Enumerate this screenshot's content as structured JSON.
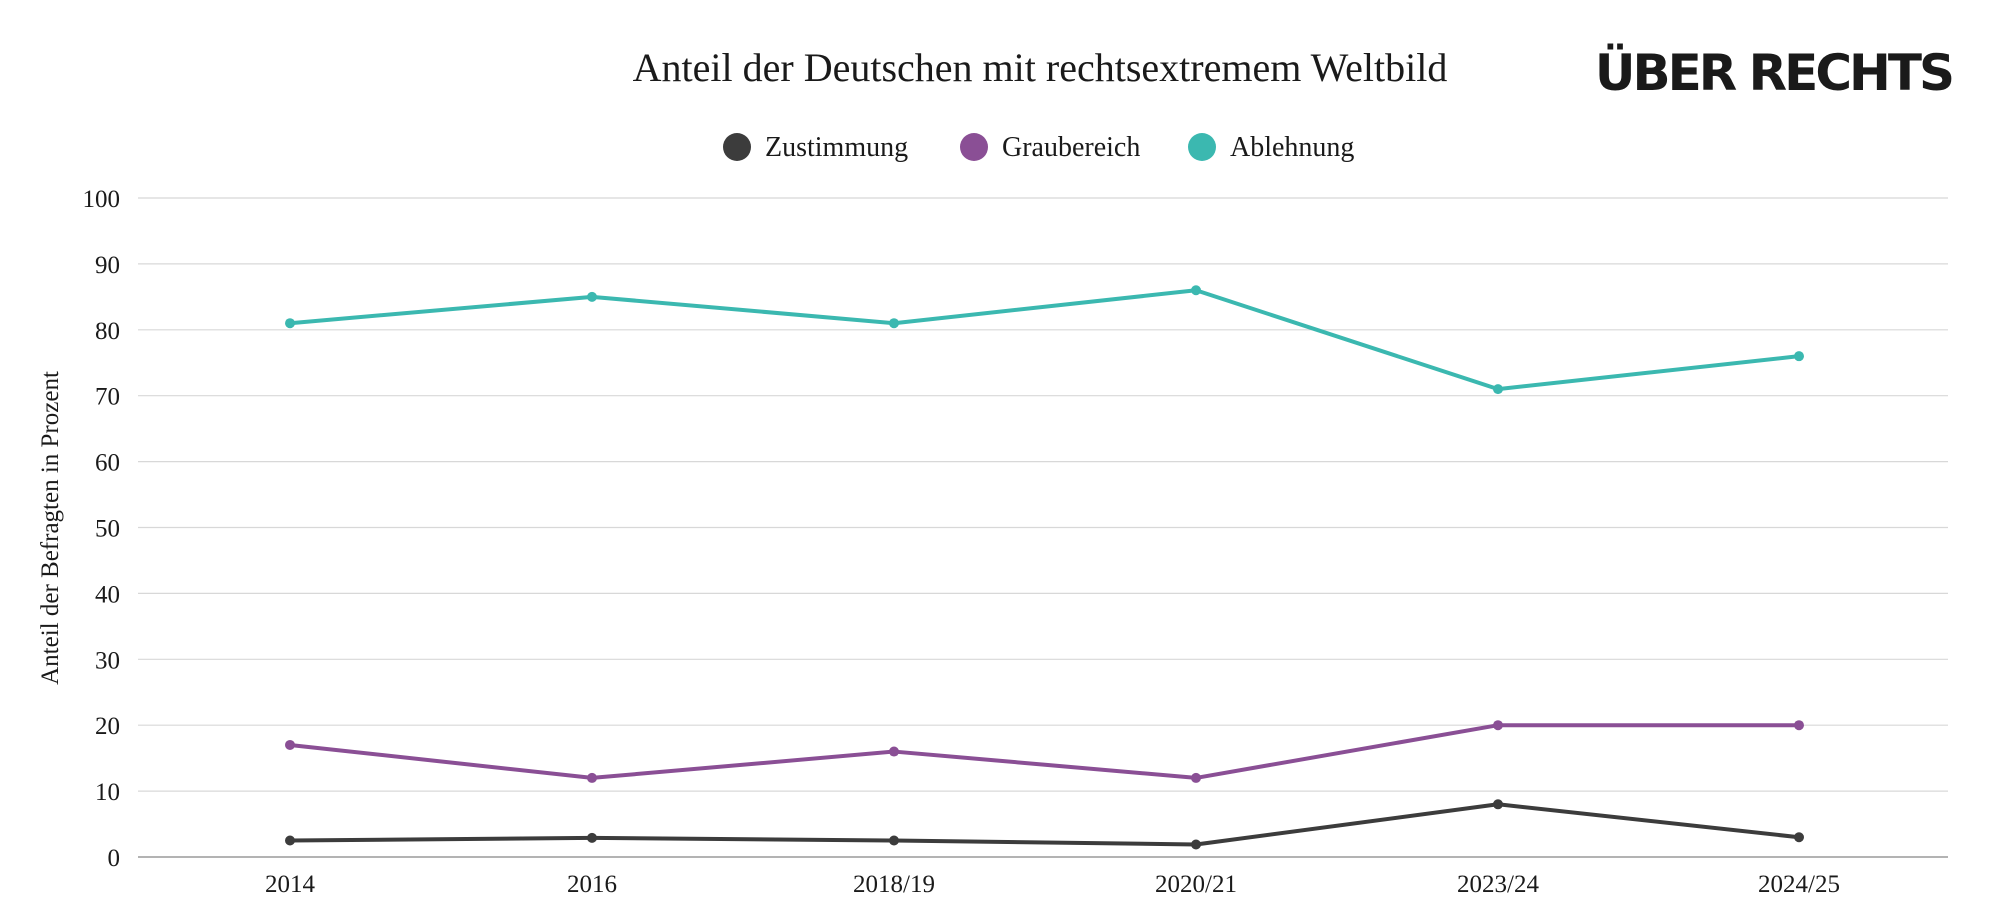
{
  "logo": {
    "text": "ÜBER RECHTS"
  },
  "chart_data": {
    "type": "line",
    "title": "Anteil der Deutschen mit rechtsextremem Weltbild",
    "xlabel": "",
    "ylabel": "Anteil der Befragten in Prozent",
    "categories": [
      "2014",
      "2016",
      "2018/19",
      "2020/21",
      "2023/24",
      "2024/25"
    ],
    "ylim": [
      0,
      100
    ],
    "yticks": [
      0,
      10,
      20,
      30,
      40,
      50,
      60,
      70,
      80,
      90,
      100
    ],
    "grid": true,
    "legend_position": "top-center",
    "series": [
      {
        "name": "Zustimmung",
        "color": "#3c3c3c",
        "values": [
          2.5,
          2.9,
          2.5,
          1.9,
          8.0,
          3.0
        ]
      },
      {
        "name": "Graubereich",
        "color": "#8a4f95",
        "values": [
          17,
          12,
          16,
          12,
          20,
          20
        ]
      },
      {
        "name": "Ablehnung",
        "color": "#3bb8b0",
        "values": [
          81,
          85,
          81,
          86,
          71,
          76
        ]
      }
    ]
  }
}
